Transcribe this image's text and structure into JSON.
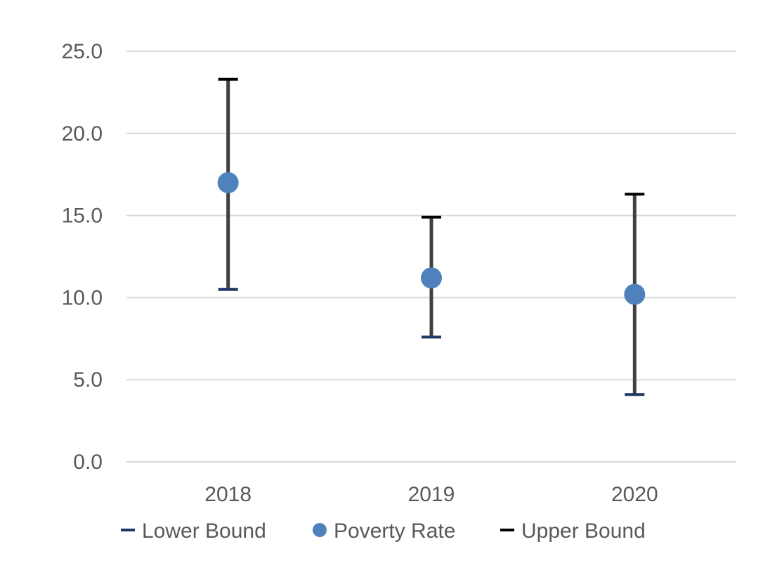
{
  "chart_data": {
    "type": "scatter",
    "title": "",
    "xlabel": "",
    "ylabel": "",
    "categories": [
      "2018",
      "2019",
      "2020"
    ],
    "series": [
      {
        "name": "Lower Bound",
        "values": [
          10.5,
          7.6,
          4.1
        ],
        "color": "#1f3864",
        "marker": "dash"
      },
      {
        "name": "Poverty Rate",
        "values": [
          17.0,
          11.2,
          10.2
        ],
        "color": "#4f81bd",
        "marker": "circle"
      },
      {
        "name": "Upper Bound",
        "values": [
          23.3,
          14.9,
          16.3
        ],
        "color": "#000000",
        "marker": "dash"
      }
    ],
    "error_bar_color": "#404040",
    "ylim": [
      0,
      25
    ],
    "yticks": [
      "0.0",
      "5.0",
      "10.0",
      "15.0",
      "20.0",
      "25.0"
    ],
    "grid": true,
    "gridline_color": "#d9d9d9",
    "legend_position": "bottom"
  }
}
